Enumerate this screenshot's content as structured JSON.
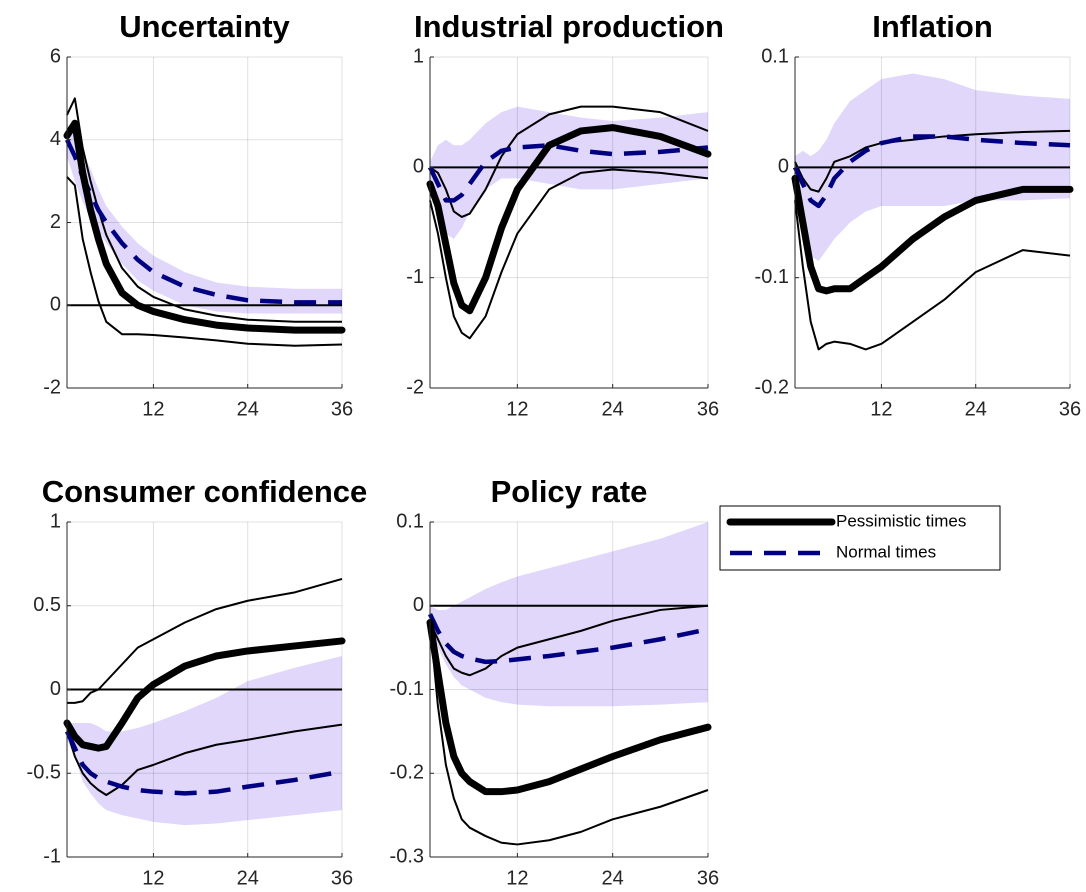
{
  "chart_data": [
    {
      "type": "line",
      "title": "Uncertainty",
      "x": [
        1,
        2,
        3,
        4,
        5,
        6,
        8,
        10,
        12,
        16,
        20,
        24,
        30,
        36
      ],
      "xlim": [
        1,
        36
      ],
      "xticks": [
        12,
        24,
        36
      ],
      "ylim": [
        -2,
        6
      ],
      "yticks": [
        -2,
        0,
        2,
        4,
        6
      ],
      "grid": true,
      "band": {
        "color": "#e0d7fb",
        "lower": [
          3.6,
          3.0,
          2.5,
          2.1,
          1.8,
          1.5,
          1.0,
          0.6,
          0.35,
          0.0,
          -0.15,
          -0.2,
          -0.2,
          -0.2
        ],
        "upper": [
          4.4,
          4.1,
          3.7,
          3.3,
          2.8,
          2.4,
          1.9,
          1.5,
          1.2,
          0.8,
          0.55,
          0.45,
          0.4,
          0.4
        ]
      },
      "bounds": {
        "color": "#000000",
        "lower": [
          3.1,
          2.9,
          1.6,
          0.8,
          0.1,
          -0.4,
          -0.7,
          -0.7,
          -0.72,
          -0.78,
          -0.85,
          -0.93,
          -0.98,
          -0.95
        ],
        "upper": [
          4.6,
          5.0,
          3.8,
          3.0,
          2.3,
          1.7,
          0.9,
          0.45,
          0.2,
          -0.1,
          -0.25,
          -0.35,
          -0.4,
          -0.4
        ]
      },
      "series": [
        {
          "color": "#000000",
          "values": [
            4.1,
            4.4,
            3.2,
            2.3,
            1.6,
            1.0,
            0.3,
            0.0,
            -0.15,
            -0.35,
            -0.48,
            -0.55,
            -0.6,
            -0.6
          ]
        },
        {
          "color": "#000080",
          "values": [
            4.0,
            3.6,
            3.1,
            2.7,
            2.3,
            2.0,
            1.5,
            1.1,
            0.8,
            0.45,
            0.25,
            0.12,
            0.07,
            0.07
          ]
        }
      ]
    },
    {
      "type": "line",
      "title": "Industrial production",
      "x": [
        1,
        2,
        3,
        4,
        5,
        6,
        8,
        10,
        12,
        16,
        20,
        24,
        30,
        36
      ],
      "xlim": [
        1,
        36
      ],
      "xticks": [
        12,
        24,
        36
      ],
      "ylim": [
        -2,
        1
      ],
      "yticks": [
        -2,
        -1,
        0,
        1
      ],
      "grid": true,
      "band": {
        "color": "#e0d7fb",
        "lower": [
          -0.2,
          -0.45,
          -0.6,
          -0.65,
          -0.55,
          -0.4,
          -0.2,
          -0.1,
          -0.1,
          -0.15,
          -0.2,
          -0.2,
          -0.15,
          -0.1
        ],
        "upper": [
          0.05,
          0.2,
          0.25,
          0.2,
          0.2,
          0.25,
          0.4,
          0.5,
          0.55,
          0.5,
          0.45,
          0.42,
          0.45,
          0.5
        ]
      },
      "bounds": {
        "color": "#000000",
        "lower": [
          -0.3,
          -0.6,
          -1.0,
          -1.35,
          -1.5,
          -1.55,
          -1.35,
          -0.95,
          -0.6,
          -0.2,
          -0.05,
          -0.02,
          -0.05,
          -0.1
        ],
        "upper": [
          0.0,
          -0.05,
          -0.2,
          -0.4,
          -0.45,
          -0.42,
          -0.2,
          0.1,
          0.3,
          0.48,
          0.55,
          0.55,
          0.5,
          0.33
        ]
      },
      "series": [
        {
          "color": "#000000",
          "values": [
            -0.15,
            -0.35,
            -0.7,
            -1.05,
            -1.25,
            -1.3,
            -1.0,
            -0.55,
            -0.2,
            0.2,
            0.33,
            0.36,
            0.28,
            0.12
          ]
        },
        {
          "color": "#000080",
          "values": [
            0.0,
            -0.15,
            -0.3,
            -0.3,
            -0.25,
            -0.15,
            0.05,
            0.15,
            0.18,
            0.2,
            0.15,
            0.12,
            0.14,
            0.18
          ]
        }
      ]
    },
    {
      "type": "line",
      "title": "Inflation",
      "x": [
        1,
        2,
        3,
        4,
        5,
        6,
        8,
        10,
        12,
        16,
        20,
        24,
        30,
        36
      ],
      "xlim": [
        1,
        36
      ],
      "xticks": [
        12,
        24,
        36
      ],
      "ylim": [
        -0.2,
        0.1
      ],
      "yticks": [
        -0.2,
        -0.1,
        0,
        0.1
      ],
      "grid": true,
      "band": {
        "color": "#e0d7fb",
        "lower": [
          -0.02,
          -0.06,
          -0.08,
          -0.085,
          -0.075,
          -0.065,
          -0.05,
          -0.04,
          -0.035,
          -0.035,
          -0.035,
          -0.03,
          -0.03,
          -0.028
        ],
        "upper": [
          0.01,
          0.015,
          0.01,
          0.015,
          0.025,
          0.04,
          0.06,
          0.07,
          0.08,
          0.085,
          0.08,
          0.07,
          0.065,
          0.062
        ]
      },
      "bounds": {
        "color": "#000000",
        "lower": [
          -0.03,
          -0.09,
          -0.14,
          -0.165,
          -0.16,
          -0.158,
          -0.16,
          -0.165,
          -0.16,
          -0.14,
          -0.12,
          -0.095,
          -0.075,
          -0.08
        ],
        "upper": [
          0.005,
          -0.01,
          -0.02,
          -0.022,
          -0.01,
          0.005,
          0.01,
          0.018,
          0.022,
          0.025,
          0.028,
          0.03,
          0.032,
          0.033
        ]
      },
      "series": [
        {
          "color": "#000000",
          "values": [
            -0.01,
            -0.05,
            -0.09,
            -0.11,
            -0.112,
            -0.11,
            -0.11,
            -0.1,
            -0.09,
            -0.065,
            -0.045,
            -0.03,
            -0.02,
            -0.02
          ]
        },
        {
          "color": "#000080",
          "values": [
            0.0,
            -0.015,
            -0.03,
            -0.035,
            -0.025,
            -0.01,
            0.005,
            0.015,
            0.022,
            0.028,
            0.028,
            0.025,
            0.022,
            0.02
          ]
        }
      ]
    },
    {
      "type": "line",
      "title": "Consumer confidence",
      "x": [
        1,
        2,
        3,
        4,
        5,
        6,
        8,
        10,
        12,
        16,
        20,
        24,
        30,
        36
      ],
      "xlim": [
        1,
        36
      ],
      "xticks": [
        12,
        24,
        36
      ],
      "ylim": [
        -1,
        1
      ],
      "yticks": [
        -1,
        -0.5,
        0,
        0.5,
        1
      ],
      "grid": true,
      "band": {
        "color": "#e0d7fb",
        "lower": [
          -0.3,
          -0.4,
          -0.55,
          -0.62,
          -0.68,
          -0.72,
          -0.75,
          -0.77,
          -0.79,
          -0.81,
          -0.8,
          -0.78,
          -0.75,
          -0.72
        ],
        "upper": [
          -0.2,
          -0.2,
          -0.2,
          -0.2,
          -0.22,
          -0.25,
          -0.25,
          -0.23,
          -0.2,
          -0.13,
          -0.05,
          0.05,
          0.13,
          0.2
        ]
      },
      "bounds": {
        "color": "#000000",
        "lower": [
          -0.25,
          -0.4,
          -0.5,
          -0.56,
          -0.6,
          -0.63,
          -0.57,
          -0.48,
          -0.45,
          -0.38,
          -0.33,
          -0.3,
          -0.25,
          -0.21
        ],
        "upper": [
          -0.08,
          -0.08,
          -0.07,
          -0.02,
          0.0,
          0.05,
          0.15,
          0.25,
          0.3,
          0.4,
          0.48,
          0.53,
          0.58,
          0.66
        ]
      },
      "series": [
        {
          "color": "#000000",
          "values": [
            -0.2,
            -0.28,
            -0.33,
            -0.34,
            -0.35,
            -0.34,
            -0.2,
            -0.05,
            0.03,
            0.14,
            0.2,
            0.23,
            0.26,
            0.29
          ]
        },
        {
          "color": "#000080",
          "values": [
            -0.25,
            -0.35,
            -0.45,
            -0.5,
            -0.53,
            -0.55,
            -0.58,
            -0.6,
            -0.61,
            -0.62,
            -0.61,
            -0.58,
            -0.54,
            -0.49
          ]
        }
      ]
    },
    {
      "type": "line",
      "title": "Policy rate",
      "x": [
        1,
        2,
        3,
        4,
        5,
        6,
        8,
        10,
        12,
        16,
        20,
        24,
        30,
        36
      ],
      "xlim": [
        1,
        36
      ],
      "xticks": [
        12,
        24,
        36
      ],
      "ylim": [
        -0.3,
        0.1
      ],
      "yticks": [
        -0.3,
        -0.2,
        -0.1,
        0,
        0.1
      ],
      "grid": true,
      "legend": "outside right",
      "band": {
        "color": "#e0d7fb",
        "lower": [
          -0.02,
          -0.05,
          -0.07,
          -0.085,
          -0.095,
          -0.1,
          -0.11,
          -0.115,
          -0.118,
          -0.12,
          -0.12,
          -0.12,
          -0.118,
          -0.115
        ],
        "upper": [
          0.0,
          -0.005,
          -0.005,
          0.0,
          0.005,
          0.01,
          0.02,
          0.028,
          0.035,
          0.045,
          0.055,
          0.065,
          0.08,
          0.1
        ]
      },
      "bounds": {
        "color": "#000000",
        "lower": [
          -0.02,
          -0.12,
          -0.19,
          -0.23,
          -0.255,
          -0.265,
          -0.275,
          -0.283,
          -0.285,
          -0.28,
          -0.27,
          -0.255,
          -0.24,
          -0.22
        ],
        "upper": [
          -0.02,
          -0.04,
          -0.06,
          -0.075,
          -0.08,
          -0.083,
          -0.075,
          -0.06,
          -0.05,
          -0.04,
          -0.03,
          -0.018,
          -0.005,
          0.0
        ]
      },
      "series": [
        {
          "name": "Pessimistic times",
          "color": "#000000",
          "values": [
            -0.02,
            -0.08,
            -0.14,
            -0.18,
            -0.2,
            -0.21,
            -0.222,
            -0.222,
            -0.22,
            -0.21,
            -0.195,
            -0.18,
            -0.16,
            -0.145
          ]
        },
        {
          "name": "Normal times",
          "color": "#000080",
          "values": [
            -0.01,
            -0.03,
            -0.045,
            -0.055,
            -0.06,
            -0.063,
            -0.067,
            -0.066,
            -0.064,
            -0.06,
            -0.055,
            -0.05,
            -0.04,
            -0.028
          ]
        }
      ]
    }
  ]
}
